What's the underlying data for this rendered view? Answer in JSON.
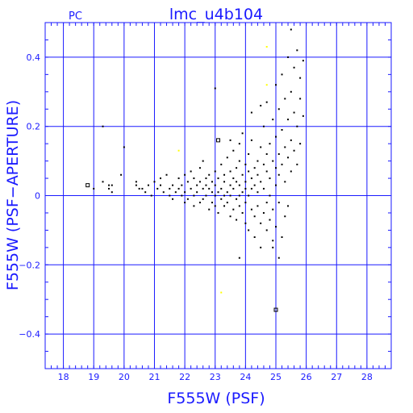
{
  "chart_data": {
    "type": "scatter",
    "title": "lmc_u4b104",
    "corner_label": "PC",
    "xlabel": "F555W (PSF)",
    "ylabel": "F555W (PSF−APERTURE)",
    "xlim": [
      17.4,
      28.8
    ],
    "ylim": [
      -0.5,
      0.5
    ],
    "grid": true,
    "x_ticks": [
      18,
      19,
      20,
      21,
      22,
      23,
      24,
      25,
      26,
      27,
      28
    ],
    "y_ticks": [
      -0.4,
      -0.2,
      0,
      0.2,
      0.4
    ],
    "x_tick_labels": [
      "18",
      "19",
      "20",
      "21",
      "22",
      "23",
      "24",
      "25",
      "26",
      "27",
      "28"
    ],
    "y_tick_labels": [
      "−0.4",
      "−0.2",
      "0",
      "0.2",
      "0.4"
    ],
    "colors": {
      "axes": "#1a1aff",
      "points": "#000000",
      "highlight": "#ffff00"
    },
    "series": [
      {
        "marker": "dot",
        "color": "#000000",
        "points": [
          [
            19.0,
            0.02
          ],
          [
            19.3,
            0.04
          ],
          [
            19.5,
            0.03
          ],
          [
            19.5,
            0.02
          ],
          [
            19.6,
            0.01
          ],
          [
            19.6,
            0.03
          ],
          [
            19.9,
            0.06
          ],
          [
            20.0,
            0.14
          ],
          [
            19.3,
            0.2
          ],
          [
            20.4,
            0.03
          ],
          [
            20.4,
            0.04
          ],
          [
            20.5,
            0.02
          ],
          [
            20.7,
            0.01
          ],
          [
            20.8,
            0.03
          ],
          [
            20.9,
            0.0
          ],
          [
            21.0,
            0.04
          ],
          [
            21.1,
            0.02
          ],
          [
            21.2,
            0.05
          ],
          [
            21.3,
            0.01
          ],
          [
            21.4,
            0.06
          ],
          [
            21.5,
            0.02
          ],
          [
            21.5,
            0.0
          ],
          [
            21.6,
            -0.01
          ],
          [
            21.6,
            0.03
          ],
          [
            21.7,
            0.01
          ],
          [
            21.8,
            0.02
          ],
          [
            21.8,
            0.05
          ],
          [
            21.9,
            0.0
          ],
          [
            21.9,
            0.03
          ],
          [
            22.0,
            -0.02
          ],
          [
            22.0,
            0.01
          ],
          [
            22.0,
            0.06
          ],
          [
            22.1,
            0.04
          ],
          [
            22.1,
            -0.01
          ],
          [
            22.2,
            0.02
          ],
          [
            22.2,
            0.07
          ],
          [
            22.3,
            0.0
          ],
          [
            22.3,
            0.05
          ],
          [
            22.3,
            -0.03
          ],
          [
            22.4,
            0.03
          ],
          [
            22.4,
            0.01
          ],
          [
            22.5,
            -0.02
          ],
          [
            22.5,
            0.04
          ],
          [
            22.5,
            0.08
          ],
          [
            22.6,
            0.02
          ],
          [
            22.6,
            -0.01
          ],
          [
            22.7,
            0.05
          ],
          [
            22.7,
            0.0
          ],
          [
            22.7,
            0.03
          ],
          [
            22.8,
            -0.04
          ],
          [
            22.8,
            0.02
          ],
          [
            22.8,
            0.06
          ],
          [
            22.9,
            0.01
          ],
          [
            22.9,
            -0.02
          ],
          [
            22.9,
            0.04
          ],
          [
            23.0,
            0.0
          ],
          [
            23.0,
            0.07
          ],
          [
            23.0,
            -0.03
          ],
          [
            23.0,
            0.03
          ],
          [
            23.1,
            0.01
          ],
          [
            23.1,
            0.05
          ],
          [
            23.1,
            -0.05
          ],
          [
            23.2,
            0.02
          ],
          [
            23.2,
            -0.01
          ],
          [
            23.2,
            0.09
          ],
          [
            23.3,
            0.0
          ],
          [
            23.3,
            0.04
          ],
          [
            23.3,
            -0.03
          ],
          [
            23.3,
            0.06
          ],
          [
            23.4,
            0.01
          ],
          [
            23.4,
            -0.02
          ],
          [
            23.4,
            0.11
          ],
          [
            23.5,
            0.03
          ],
          [
            23.5,
            -0.06
          ],
          [
            23.5,
            0.07
          ],
          [
            23.5,
            0.0
          ],
          [
            23.6,
            0.02
          ],
          [
            23.6,
            -0.04
          ],
          [
            23.6,
            0.05
          ],
          [
            23.6,
            0.13
          ],
          [
            23.7,
            -0.01
          ],
          [
            23.7,
            0.04
          ],
          [
            23.7,
            0.08
          ],
          [
            23.7,
            -0.07
          ],
          [
            23.8,
            0.0
          ],
          [
            23.8,
            0.03
          ],
          [
            23.8,
            0.1
          ],
          [
            23.8,
            -0.03
          ],
          [
            23.8,
            0.15
          ],
          [
            23.9,
            0.06
          ],
          [
            23.9,
            -0.05
          ],
          [
            23.9,
            0.01
          ],
          [
            23.9,
            0.18
          ],
          [
            24.0,
            0.02
          ],
          [
            24.0,
            -0.08
          ],
          [
            24.0,
            0.09
          ],
          [
            24.0,
            0.04
          ],
          [
            24.0,
            -0.02
          ],
          [
            24.1,
            0.07
          ],
          [
            24.1,
            0.0
          ],
          [
            24.1,
            -0.1
          ],
          [
            24.1,
            0.12
          ],
          [
            24.2,
            0.05
          ],
          [
            24.2,
            -0.04
          ],
          [
            24.2,
            0.02
          ],
          [
            24.2,
            0.16
          ],
          [
            24.3,
            0.08
          ],
          [
            24.3,
            -0.06
          ],
          [
            24.3,
            0.03
          ],
          [
            24.3,
            -0.12
          ],
          [
            24.4,
            0.1
          ],
          [
            24.4,
            0.01
          ],
          [
            24.4,
            -0.03
          ],
          [
            24.4,
            0.06
          ],
          [
            24.5,
            0.14
          ],
          [
            24.5,
            -0.08
          ],
          [
            24.5,
            0.04
          ],
          [
            24.5,
            -0.15
          ],
          [
            24.6,
            0.09
          ],
          [
            24.6,
            0.02
          ],
          [
            24.6,
            -0.05
          ],
          [
            24.6,
            0.2
          ],
          [
            24.7,
            0.07
          ],
          [
            24.7,
            -0.02
          ],
          [
            24.7,
            0.12
          ],
          [
            24.7,
            -0.1
          ],
          [
            24.7,
            0.27
          ],
          [
            24.8,
            0.05
          ],
          [
            24.8,
            -0.07
          ],
          [
            24.8,
            0.15
          ],
          [
            24.8,
            0.0
          ],
          [
            24.9,
            0.1
          ],
          [
            24.9,
            -0.04
          ],
          [
            24.9,
            0.22
          ],
          [
            24.9,
            -0.13
          ],
          [
            25.0,
            0.08
          ],
          [
            25.0,
            0.03
          ],
          [
            25.0,
            -0.09
          ],
          [
            25.0,
            0.17
          ],
          [
            25.0,
            0.32
          ],
          [
            25.1,
            0.12
          ],
          [
            25.1,
            -0.02
          ],
          [
            25.1,
            0.25
          ],
          [
            25.1,
            0.06
          ],
          [
            25.2,
            -0.12
          ],
          [
            25.2,
            0.19
          ],
          [
            25.2,
            0.09
          ],
          [
            25.2,
            0.35
          ],
          [
            25.3,
            0.14
          ],
          [
            25.3,
            -0.06
          ],
          [
            25.3,
            0.28
          ],
          [
            25.3,
            0.04
          ],
          [
            25.4,
            0.22
          ],
          [
            25.4,
            0.11
          ],
          [
            25.4,
            0.4
          ],
          [
            25.4,
            -0.03
          ],
          [
            25.5,
            0.16
          ],
          [
            25.5,
            0.3
          ],
          [
            25.5,
            0.07
          ],
          [
            25.5,
            0.48
          ],
          [
            25.6,
            0.24
          ],
          [
            25.6,
            0.13
          ],
          [
            25.6,
            0.37
          ],
          [
            25.7,
            0.2
          ],
          [
            25.7,
            0.09
          ],
          [
            25.7,
            0.42
          ],
          [
            25.8,
            0.28
          ],
          [
            25.8,
            0.15
          ],
          [
            25.8,
            0.34
          ],
          [
            25.9,
            0.23
          ],
          [
            25.9,
            0.39
          ],
          [
            23.0,
            0.31
          ],
          [
            24.5,
            0.26
          ],
          [
            23.8,
            -0.18
          ],
          [
            24.9,
            -0.15
          ],
          [
            25.1,
            -0.18
          ],
          [
            21.2,
            0.03
          ],
          [
            20.6,
            0.02
          ],
          [
            22.6,
            0.1
          ],
          [
            23.5,
            0.16
          ],
          [
            24.2,
            0.24
          ]
        ]
      },
      {
        "marker": "open-square",
        "color": "#000000",
        "points": [
          [
            18.8,
            0.03
          ],
          [
            23.1,
            0.16
          ],
          [
            25.0,
            -0.33
          ]
        ]
      },
      {
        "marker": "dot",
        "color": "#ffff00",
        "points": [
          [
            24.7,
            0.43
          ],
          [
            24.7,
            0.32
          ],
          [
            21.8,
            0.13
          ],
          [
            23.2,
            -0.28
          ]
        ]
      }
    ]
  }
}
